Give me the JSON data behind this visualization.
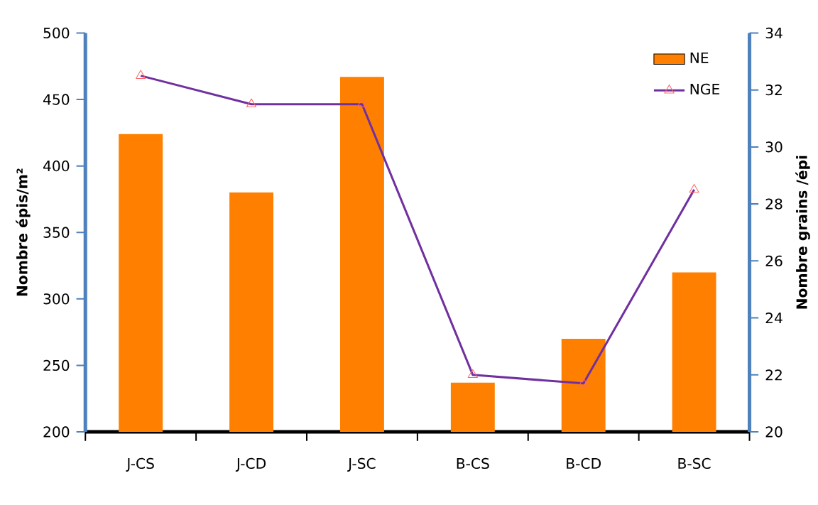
{
  "chart_data": {
    "type": "bar",
    "categories": [
      "J-CS",
      "J-CD",
      "J-SC",
      "B-CS",
      "B-CD",
      "B-SC"
    ],
    "series": [
      {
        "name": "NE",
        "color": "#ff8000",
        "values": [
          424,
          380,
          467,
          237,
          270,
          320
        ]
      },
      {
        "name": "NGE",
        "type": "line",
        "axis": "y2",
        "color": "#7030a0",
        "marker": "triangle",
        "values": [
          32.5,
          31.5,
          31.5,
          22,
          21.7,
          28.5
        ]
      }
    ],
    "ylabel": "Nombre épis/m²",
    "y2label": "Nombre grains /épi",
    "ylim": [
      200,
      500
    ],
    "yticks": [
      200,
      250,
      300,
      350,
      400,
      450,
      500
    ],
    "y2lim": [
      20,
      34
    ],
    "y2ticks": [
      20,
      22,
      24,
      26,
      28,
      30,
      32,
      34
    ],
    "legend": "top right"
  }
}
